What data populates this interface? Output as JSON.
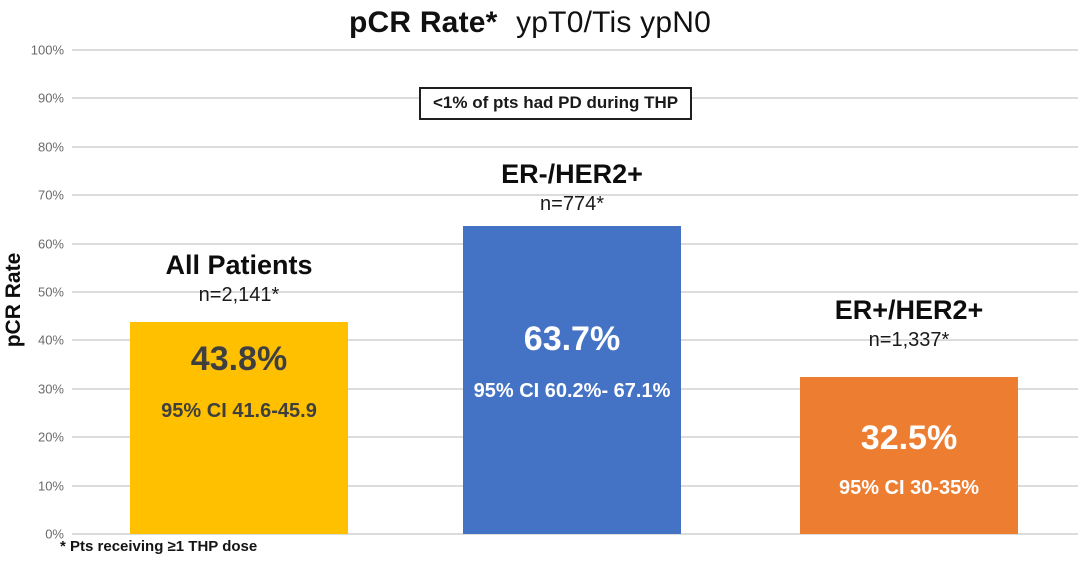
{
  "title": {
    "bold_part": "pCR Rate*",
    "regular_part": "ypT0/Tis ypN0"
  },
  "annotation": "<1% of pts had PD during THP",
  "y_axis": {
    "label": "pCR Rate",
    "ticks_top_to_bottom": [
      "100%",
      "90%",
      "80%",
      "70%",
      "60%",
      "50%",
      "40%",
      "30%",
      "20%",
      "10%",
      "0%"
    ]
  },
  "footnote": "* Pts receiving ≥1 THP dose",
  "colors": {
    "gold": "#FFC000",
    "blue": "#4472C4",
    "orange": "#ED7D31",
    "gridline": "#DCDCDC",
    "dark_text": "#3F3F3F",
    "white_text": "#FFFFFF"
  },
  "chart_data": {
    "type": "bar",
    "title": "pCR Rate* ypT0/Tis ypN0",
    "xlabel": "",
    "ylabel": "pCR Rate",
    "ylim": [
      0,
      100
    ],
    "grid": true,
    "legend": "none",
    "categories": [
      "All Patients",
      "ER-/HER2+",
      "ER+/HER2+"
    ],
    "values": [
      43.8,
      63.7,
      32.5
    ],
    "groups": [
      {
        "label": "All Patients",
        "n_label": "n=2,141*",
        "value": 43.8,
        "value_label": "43.8%",
        "ci_label": "95% CI 41.6-45.9",
        "bar_color": "#FFC000",
        "text_color": "#3F3F3F"
      },
      {
        "label": "ER-/HER2+",
        "n_label": "n=774*",
        "value": 63.7,
        "value_label": "63.7%",
        "ci_label": "95% CI 60.2%- 67.1%",
        "bar_color": "#4472C4",
        "text_color": "#FFFFFF"
      },
      {
        "label": "ER+/HER2+",
        "n_label": "n=1,337*",
        "value": 32.5,
        "value_label": "32.5%",
        "ci_label": "95% CI 30-35%",
        "bar_color": "#ED7D31",
        "text_color": "#FFFFFF"
      }
    ],
    "annotations": [
      "<1% of pts had PD during THP",
      "* Pts receiving ≥1 THP dose"
    ]
  }
}
